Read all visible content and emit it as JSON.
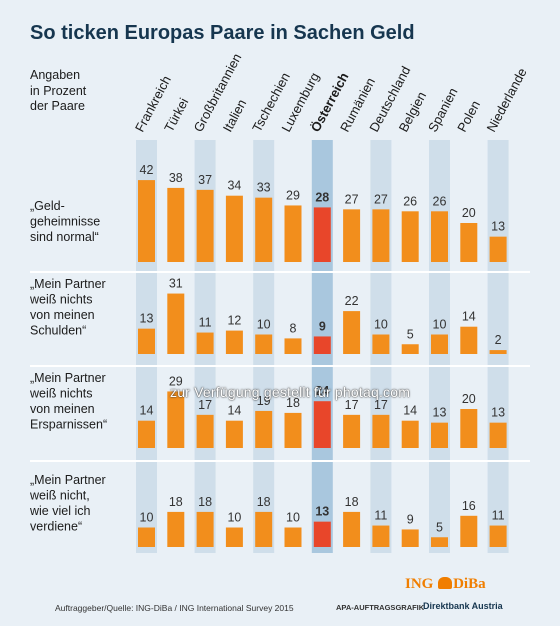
{
  "title": "So ticken Europas Paare in Sachen Geld",
  "intro": [
    "Angaben",
    "in Prozent",
    "der Paare"
  ],
  "chart_data": {
    "type": "bar",
    "categories": [
      "Frankreich",
      "Türkei",
      "Großbritannien",
      "Italien",
      "Tschechien",
      "Luxemburg",
      "Österreich",
      "Rumänien",
      "Deutschland",
      "Belgien",
      "Spanien",
      "Polen",
      "Niederlande"
    ],
    "highlight": "Österreich",
    "rows": [
      {
        "label": [
          "„Geld-",
          "geheimnisse",
          "sind normal“"
        ],
        "values": [
          42,
          38,
          37,
          34,
          33,
          29,
          28,
          27,
          27,
          26,
          26,
          20,
          13
        ]
      },
      {
        "label": [
          "„Mein Partner",
          "weiß nichts",
          "von meinen",
          "Schulden“"
        ],
        "values": [
          13,
          31,
          11,
          12,
          10,
          8,
          9,
          22,
          10,
          5,
          10,
          14,
          2
        ]
      },
      {
        "label": [
          "„Mein Partner",
          "weiß nichts",
          "von meinen",
          "Ersparnissen“"
        ],
        "values": [
          14,
          29,
          17,
          14,
          19,
          18,
          24,
          17,
          17,
          14,
          13,
          20,
          13
        ]
      },
      {
        "label": [
          "„Mein Partner",
          "weiß nicht,",
          "wie viel ich",
          "verdiene“"
        ],
        "values": [
          10,
          18,
          18,
          10,
          18,
          10,
          13,
          18,
          11,
          9,
          5,
          16,
          11
        ]
      }
    ],
    "colors": {
      "bar": "#f28e1c",
      "highlight_bar": "#e8462a",
      "stripe": "#cfdeea",
      "highlight_stripe": "#a9c7de"
    }
  },
  "watermark": "zur Verfügung gestellt für photaq.com",
  "footer": {
    "source": "Auftraggeber/Quelle: ING-DiBa / ING International Survey 2015",
    "apa": "APA-AUFTRAGSGRAFIK",
    "logo_left": "ING",
    "logo_right": "DiBa",
    "logo_sub": "Direktbank Austria"
  }
}
